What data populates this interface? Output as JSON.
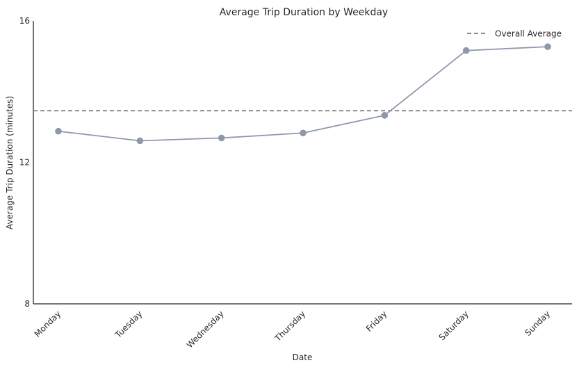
{
  "chart_data": {
    "type": "line",
    "title": "Average Trip Duration by Weekday",
    "xlabel": "Date",
    "ylabel": "Average Trip Duration (minutes)",
    "categories": [
      "Monday",
      "Tuesday",
      "Wednesday",
      "Thursday",
      "Friday",
      "Saturday",
      "Sunday"
    ],
    "series": [
      {
        "values": [
          12.88,
          12.61,
          12.69,
          12.83,
          13.33,
          15.16,
          15.27
        ],
        "color": "#8e98ab"
      }
    ],
    "reference_line": {
      "name": "Overall Average",
      "value": 13.46,
      "color": "#7a7a7a",
      "style": "dashed"
    },
    "yticks": [
      "8",
      "12",
      "16"
    ],
    "ylim": [
      8,
      16
    ],
    "grid": false,
    "legend": "top-right"
  }
}
